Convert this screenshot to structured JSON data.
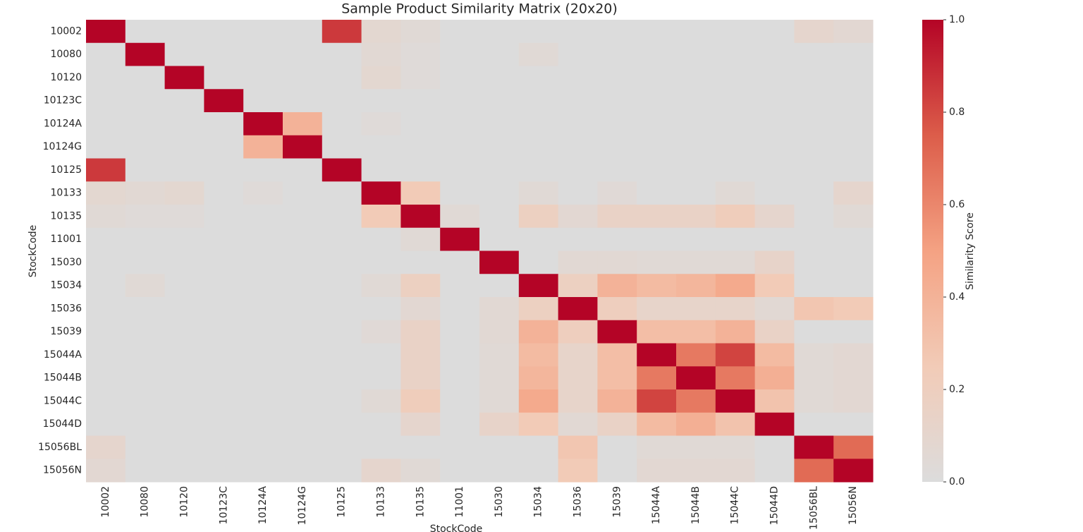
{
  "chart_data": {
    "type": "heatmap",
    "title": "Sample Product Similarity Matrix (20x20)",
    "x_label": "StockCode",
    "y_label": "StockCode",
    "colorbar_label": "Similarity Score",
    "x_categories": [
      "10002",
      "10080",
      "10120",
      "10123C",
      "10124A",
      "10124G",
      "10125",
      "10133",
      "10135",
      "11001",
      "15030",
      "15034",
      "15036",
      "15039",
      "15044A",
      "15044B",
      "15044C",
      "15044D",
      "15056BL",
      "15056N"
    ],
    "y_categories": [
      "10002",
      "10080",
      "10120",
      "10123C",
      "10124A",
      "10124G",
      "10125",
      "10133",
      "10135",
      "11001",
      "15030",
      "15034",
      "15036",
      "15039",
      "15044A",
      "15044B",
      "15044C",
      "15044D",
      "15056BL",
      "15056N"
    ],
    "values": [
      [
        1,
        0,
        0,
        0,
        0,
        0,
        0.85,
        0.08,
        0.05,
        0,
        0,
        0,
        0,
        0,
        0,
        0,
        0,
        0,
        0.1,
        0.07
      ],
      [
        0,
        1,
        0,
        0,
        0,
        0,
        0,
        0.06,
        0.03,
        0,
        0,
        0.05,
        0,
        0,
        0,
        0,
        0,
        0,
        0,
        0
      ],
      [
        0,
        0,
        1,
        0,
        0,
        0,
        0,
        0.08,
        0.03,
        0,
        0,
        0,
        0,
        0,
        0,
        0,
        0,
        0,
        0,
        0
      ],
      [
        0,
        0,
        0,
        1,
        0,
        0,
        0,
        0,
        0,
        0,
        0,
        0,
        0,
        0,
        0,
        0,
        0,
        0,
        0,
        0
      ],
      [
        0,
        0,
        0,
        0,
        1,
        0.4,
        0,
        0.03,
        0,
        0,
        0,
        0,
        0,
        0,
        0,
        0,
        0,
        0,
        0,
        0
      ],
      [
        0,
        0,
        0,
        0,
        0.4,
        1,
        0,
        0,
        0,
        0,
        0,
        0,
        0,
        0,
        0,
        0,
        0,
        0,
        0,
        0
      ],
      [
        0.85,
        0,
        0,
        0,
        0,
        0,
        1,
        0,
        0,
        0,
        0,
        0,
        0,
        0,
        0,
        0,
        0,
        0,
        0,
        0
      ],
      [
        0.08,
        0.06,
        0.08,
        0,
        0.03,
        0,
        0,
        1,
        0.25,
        0,
        0,
        0.05,
        0,
        0.04,
        0,
        0,
        0.05,
        0,
        0,
        0.1
      ],
      [
        0.05,
        0.03,
        0.03,
        0,
        0,
        0,
        0,
        0.25,
        1,
        0.05,
        0,
        0.18,
        0.07,
        0.15,
        0.15,
        0.15,
        0.22,
        0.1,
        0,
        0.05
      ],
      [
        0,
        0,
        0,
        0,
        0,
        0,
        0,
        0,
        0.05,
        1,
        0,
        0,
        0,
        0,
        0,
        0,
        0,
        0,
        0,
        0
      ],
      [
        0,
        0,
        0,
        0,
        0,
        0,
        0,
        0,
        0,
        0,
        1,
        0,
        0.06,
        0.06,
        0.05,
        0.05,
        0.05,
        0.13,
        0,
        0
      ],
      [
        0,
        0.05,
        0,
        0,
        0,
        0,
        0,
        0.05,
        0.18,
        0,
        0,
        1,
        0.18,
        0.4,
        0.35,
        0.38,
        0.45,
        0.25,
        0,
        0
      ],
      [
        0,
        0,
        0,
        0,
        0,
        0,
        0,
        0,
        0.07,
        0,
        0.06,
        0.18,
        1,
        0.2,
        0.12,
        0.12,
        0.12,
        0.06,
        0.28,
        0.25
      ],
      [
        0,
        0,
        0,
        0,
        0,
        0,
        0,
        0.04,
        0.15,
        0,
        0.06,
        0.4,
        0.2,
        1,
        0.33,
        0.33,
        0.4,
        0.15,
        0,
        0
      ],
      [
        0,
        0,
        0,
        0,
        0,
        0,
        0,
        0,
        0.15,
        0,
        0.05,
        0.35,
        0.12,
        0.33,
        1,
        0.65,
        0.82,
        0.35,
        0.05,
        0.07
      ],
      [
        0,
        0,
        0,
        0,
        0,
        0,
        0,
        0,
        0.15,
        0,
        0.05,
        0.38,
        0.12,
        0.33,
        0.65,
        1,
        0.65,
        0.42,
        0.05,
        0.07
      ],
      [
        0,
        0,
        0,
        0,
        0,
        0,
        0,
        0.05,
        0.22,
        0,
        0.05,
        0.45,
        0.12,
        0.4,
        0.82,
        0.65,
        1,
        0.3,
        0.05,
        0.07
      ],
      [
        0,
        0,
        0,
        0,
        0,
        0,
        0,
        0,
        0.1,
        0,
        0.13,
        0.25,
        0.06,
        0.15,
        0.35,
        0.42,
        0.3,
        1,
        0,
        0
      ],
      [
        0.1,
        0,
        0,
        0,
        0,
        0,
        0,
        0,
        0,
        0,
        0,
        0,
        0.28,
        0,
        0.05,
        0.05,
        0.05,
        0,
        1,
        0.7
      ],
      [
        0.07,
        0,
        0,
        0,
        0,
        0,
        0,
        0.1,
        0.05,
        0,
        0,
        0,
        0.25,
        0,
        0.07,
        0.07,
        0.07,
        0,
        0.7,
        1
      ]
    ],
    "colormap": [
      "#dcdcdc",
      "#f2cbb7",
      "#f4a283",
      "#dc5d4a",
      "#b40426"
    ],
    "clim": [
      0,
      1
    ],
    "cticks": [
      {
        "value": 0,
        "label": "0.0"
      },
      {
        "value": 0.2,
        "label": "0.2"
      },
      {
        "value": 0.4,
        "label": "0.4"
      },
      {
        "value": 0.6,
        "label": "0.6"
      },
      {
        "value": 0.8,
        "label": "0.8"
      },
      {
        "value": 1,
        "label": "1.0"
      }
    ]
  }
}
